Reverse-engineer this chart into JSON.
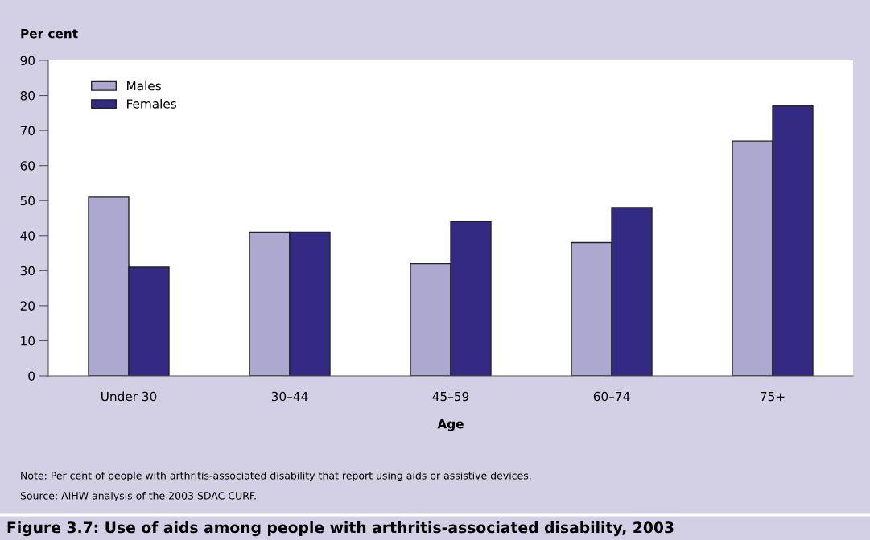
{
  "chart_data": {
    "type": "bar",
    "title": "Figure 3.7: Use of aids among people with arthritis-associated disability, 2003",
    "ylabel": "Per cent",
    "xlabel": "Age",
    "categories": [
      "Under 30",
      "30–44",
      "45–59",
      "60–74",
      "75+"
    ],
    "series": [
      {
        "name": "Males",
        "color": "#aca8cf",
        "values": [
          51,
          41,
          32,
          38,
          67
        ]
      },
      {
        "name": "Females",
        "color": "#332a84",
        "values": [
          31,
          41,
          44,
          48,
          77
        ]
      }
    ],
    "ylim": [
      0,
      90
    ],
    "yticks": [
      0,
      10,
      20,
      30,
      40,
      50,
      60,
      70,
      80,
      90
    ],
    "grid": false,
    "legend": "top left",
    "annotations": [
      "Note: Per cent of people with arthritis-associated disability that report using aids or assistive devices.",
      "Source: AIHW analysis of the 2003 SDAC CURF."
    ]
  }
}
